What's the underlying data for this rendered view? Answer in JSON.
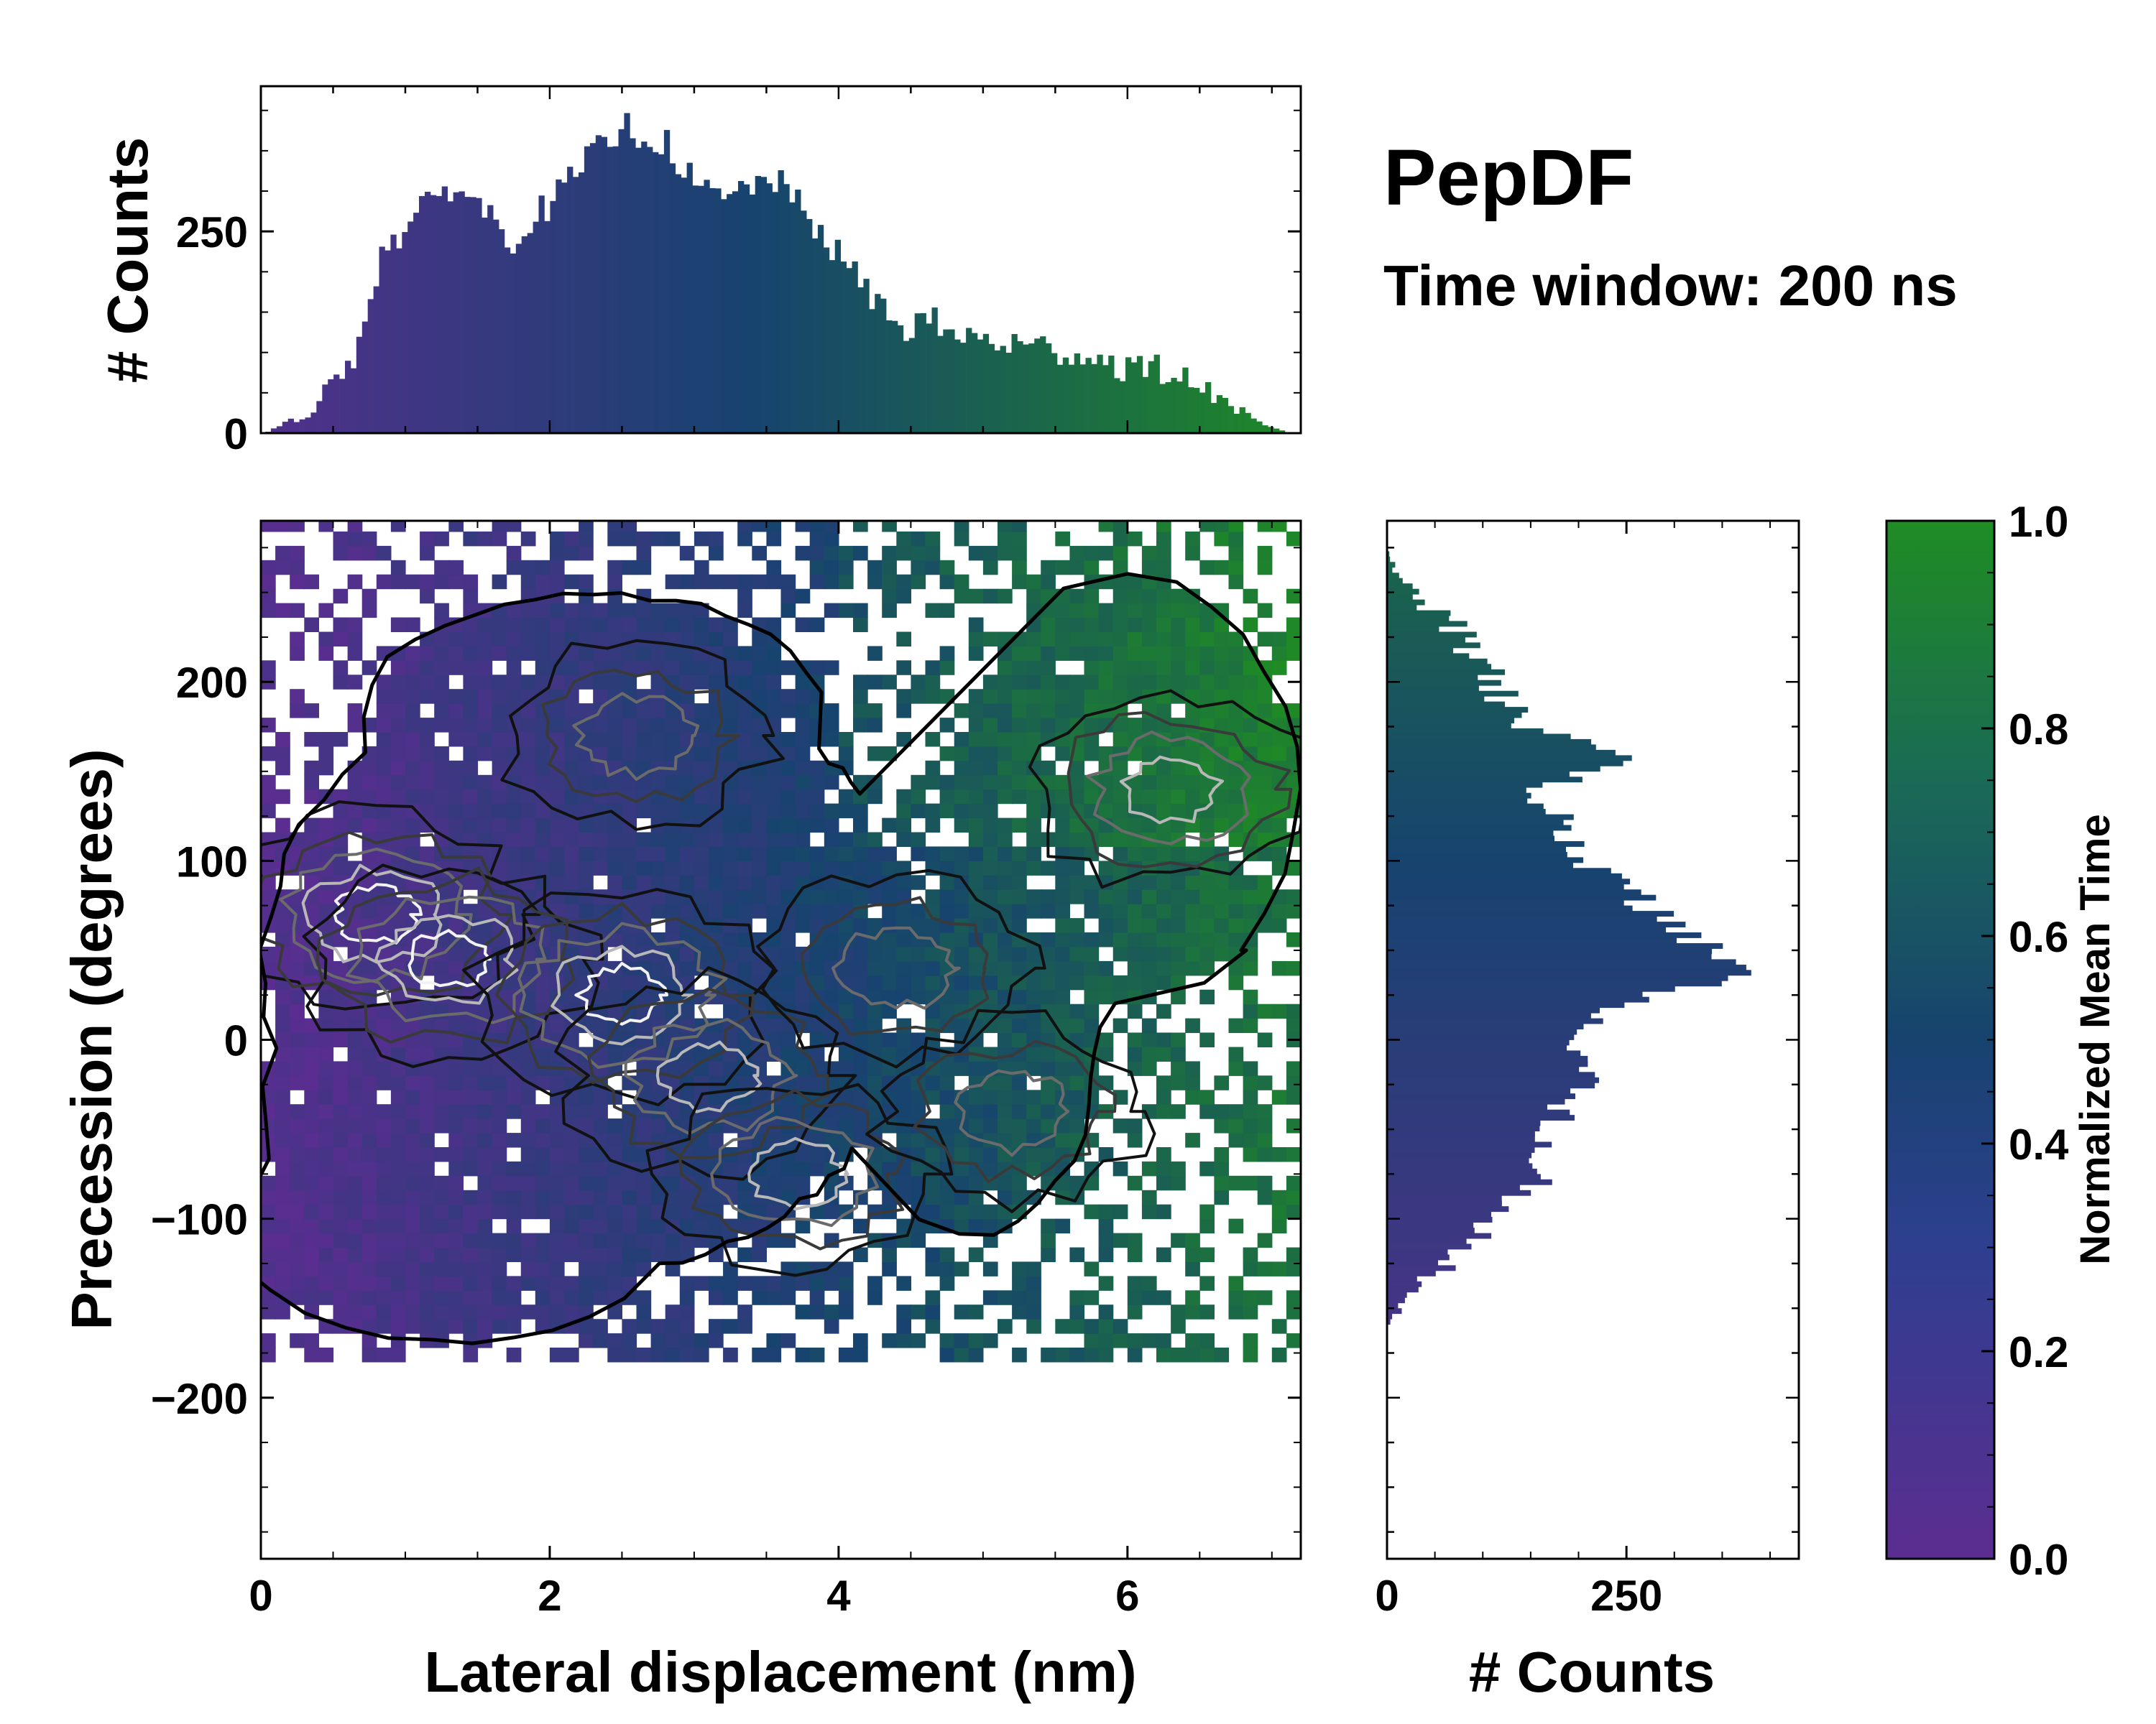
{
  "chart_data": [
    {
      "id": "main",
      "type": "heatmap",
      "title": "",
      "xlabel": "Lateral displacement (nm)",
      "ylabel": "Precession (degrees)",
      "xlim": [
        0,
        7.2
      ],
      "ylim": [
        -290,
        290
      ],
      "xticks": [
        0,
        2,
        4,
        6
      ],
      "xtick_labels": [
        "0",
        "2",
        "4",
        "6"
      ],
      "yticks": [
        -200,
        -100,
        0,
        100,
        200
      ],
      "ytick_labels": [
        "−200",
        "−100",
        "0",
        "100",
        "200"
      ],
      "colormap": {
        "low": "#5b2d91",
        "mid": "#17436f",
        "high": "#1f8c23"
      },
      "contour_levels": [
        "black",
        "dark-gray",
        "gray",
        "light-gray",
        "white"
      ],
      "density_peaks": [
        {
          "x": 0.8,
          "y": 70,
          "weight": 1.0
        },
        {
          "x": 1.3,
          "y": 45,
          "weight": 0.9
        },
        {
          "x": 2.5,
          "y": 25,
          "weight": 1.0
        },
        {
          "x": 3.1,
          "y": -20,
          "weight": 0.8
        },
        {
          "x": 3.7,
          "y": -75,
          "weight": 0.7
        },
        {
          "x": 6.3,
          "y": 140,
          "weight": 0.7
        },
        {
          "x": 2.6,
          "y": 170,
          "weight": 0.5
        },
        {
          "x": 4.4,
          "y": 40,
          "weight": 0.5
        },
        {
          "x": 5.2,
          "y": -40,
          "weight": 0.5
        }
      ]
    },
    {
      "id": "top-hist",
      "type": "bar",
      "xlabel": "",
      "ylabel": "# Counts",
      "xlim": [
        0,
        7.2
      ],
      "ylim": [
        0,
        430
      ],
      "yticks": [
        0,
        250
      ],
      "ytick_labels": [
        "0",
        "250"
      ],
      "profile_x": [
        0,
        0.3,
        0.6,
        0.8,
        1.0,
        1.3,
        1.5,
        1.7,
        2.0,
        2.3,
        2.5,
        2.8,
        3.0,
        3.2,
        3.5,
        3.8,
        4.1,
        4.4,
        4.6,
        4.8,
        5.2,
        5.6,
        5.9,
        6.3,
        6.6,
        6.9,
        7.1
      ],
      "profile_y": [
        0,
        25,
        90,
        220,
        260,
        310,
        280,
        240,
        290,
        350,
        380,
        355,
        300,
        290,
        320,
        260,
        190,
        130,
        140,
        120,
        110,
        100,
        85,
        75,
        45,
        10,
        0
      ]
    },
    {
      "id": "right-hist",
      "type": "bar",
      "orientation": "horizontal",
      "xlabel": "# Counts",
      "ylabel": "",
      "xlim": [
        0,
        430
      ],
      "ylim": [
        -290,
        290
      ],
      "xticks": [
        0,
        250
      ],
      "xtick_labels": [
        "0",
        "250"
      ],
      "profile_y": [
        -160,
        -145,
        -120,
        -100,
        -80,
        -50,
        -20,
        0,
        20,
        35,
        50,
        60,
        75,
        100,
        120,
        140,
        155,
        180,
        200,
        230,
        260,
        275
      ],
      "profile_x": [
        0,
        20,
        70,
        120,
        150,
        170,
        210,
        200,
        240,
        360,
        350,
        300,
        270,
        210,
        180,
        150,
        250,
        130,
        110,
        70,
        10,
        0
      ]
    },
    {
      "id": "colorbar",
      "type": "heatmap",
      "label": "Normalized Mean Time",
      "ylim": [
        0,
        1
      ],
      "ticks": [
        0.0,
        0.2,
        0.4,
        0.6,
        0.8,
        1.0
      ],
      "tick_labels": [
        "0.0",
        "0.2",
        "0.4",
        "0.6",
        "0.8",
        "1.0"
      ]
    }
  ],
  "annotations": {
    "title": "PepDF",
    "subtitle": "Time window: 200 ns"
  }
}
